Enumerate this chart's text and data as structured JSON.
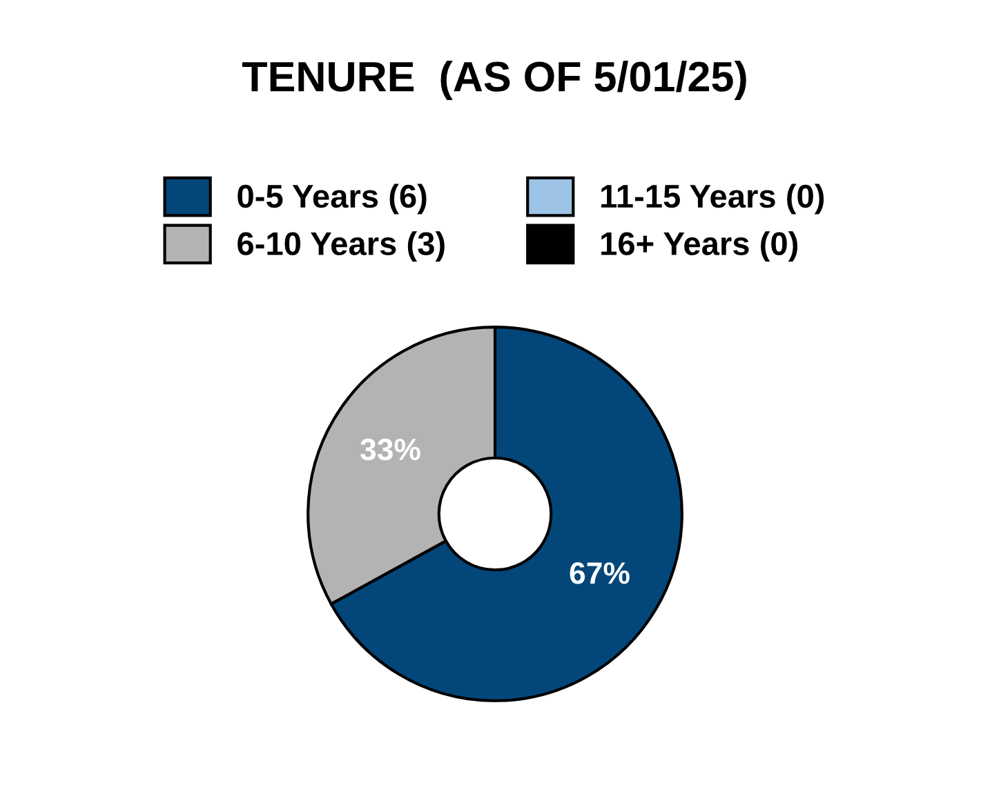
{
  "chart_data": {
    "type": "donut",
    "title": "TENURE  (AS OF 5/01/25)",
    "categories": [
      "0-5 Years (6)",
      "6-10 Years (3)",
      "11-15 Years (0)",
      "16+ Years (0)"
    ],
    "values": [
      67,
      33,
      0,
      0
    ],
    "value_labels": [
      "67%",
      "33%",
      null,
      null
    ],
    "colors": [
      "#03477a",
      "#b3b3b3",
      "#9dc3e6",
      "#000000"
    ],
    "legend": "top"
  }
}
